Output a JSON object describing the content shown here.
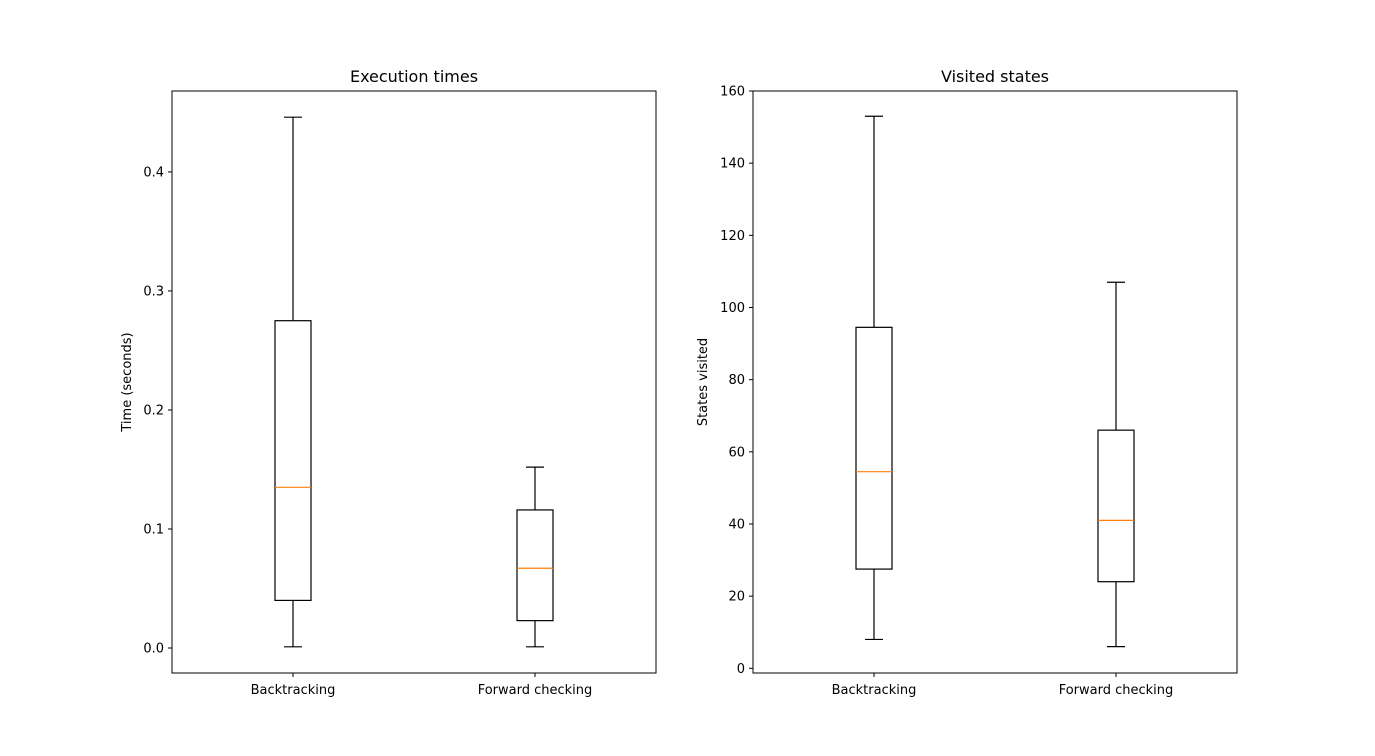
{
  "colors": {
    "background": "#ffffff",
    "axes": "#000000",
    "box": "#000000",
    "median": "#ff7f0e"
  },
  "chart_data": [
    {
      "type": "box",
      "title": "Execution times",
      "xlabel": "",
      "ylabel": "Time (seconds)",
      "categories": [
        "Backtracking",
        "Forward checking"
      ],
      "ylim": [
        -0.021,
        0.468
      ],
      "yticks": [
        0.0,
        0.1,
        0.2,
        0.3,
        0.4
      ],
      "ytick_labels": [
        "0.0",
        "0.1",
        "0.2",
        "0.3",
        "0.4"
      ],
      "grid": false,
      "boxes": [
        {
          "category": "Backtracking",
          "whisker_low": 0.001,
          "q1": 0.04,
          "median": 0.135,
          "q3": 0.275,
          "whisker_high": 0.446
        },
        {
          "category": "Forward checking",
          "whisker_low": 0.001,
          "q1": 0.023,
          "median": 0.067,
          "q3": 0.116,
          "whisker_high": 0.152
        }
      ]
    },
    {
      "type": "box",
      "title": "Visited states",
      "xlabel": "",
      "ylabel": "States visited",
      "categories": [
        "Backtracking",
        "Forward checking"
      ],
      "ylim": [
        -1.3,
        160.0
      ],
      "yticks": [
        0,
        20,
        40,
        60,
        80,
        100,
        120,
        140,
        160
      ],
      "ytick_labels": [
        "0",
        "20",
        "40",
        "60",
        "80",
        "100",
        "120",
        "140",
        "160"
      ],
      "grid": false,
      "boxes": [
        {
          "category": "Backtracking",
          "whisker_low": 8,
          "q1": 27.5,
          "median": 54.5,
          "q3": 94.5,
          "whisker_high": 153
        },
        {
          "category": "Forward checking",
          "whisker_low": 6,
          "q1": 24,
          "median": 41,
          "q3": 66,
          "whisker_high": 107
        }
      ]
    }
  ]
}
